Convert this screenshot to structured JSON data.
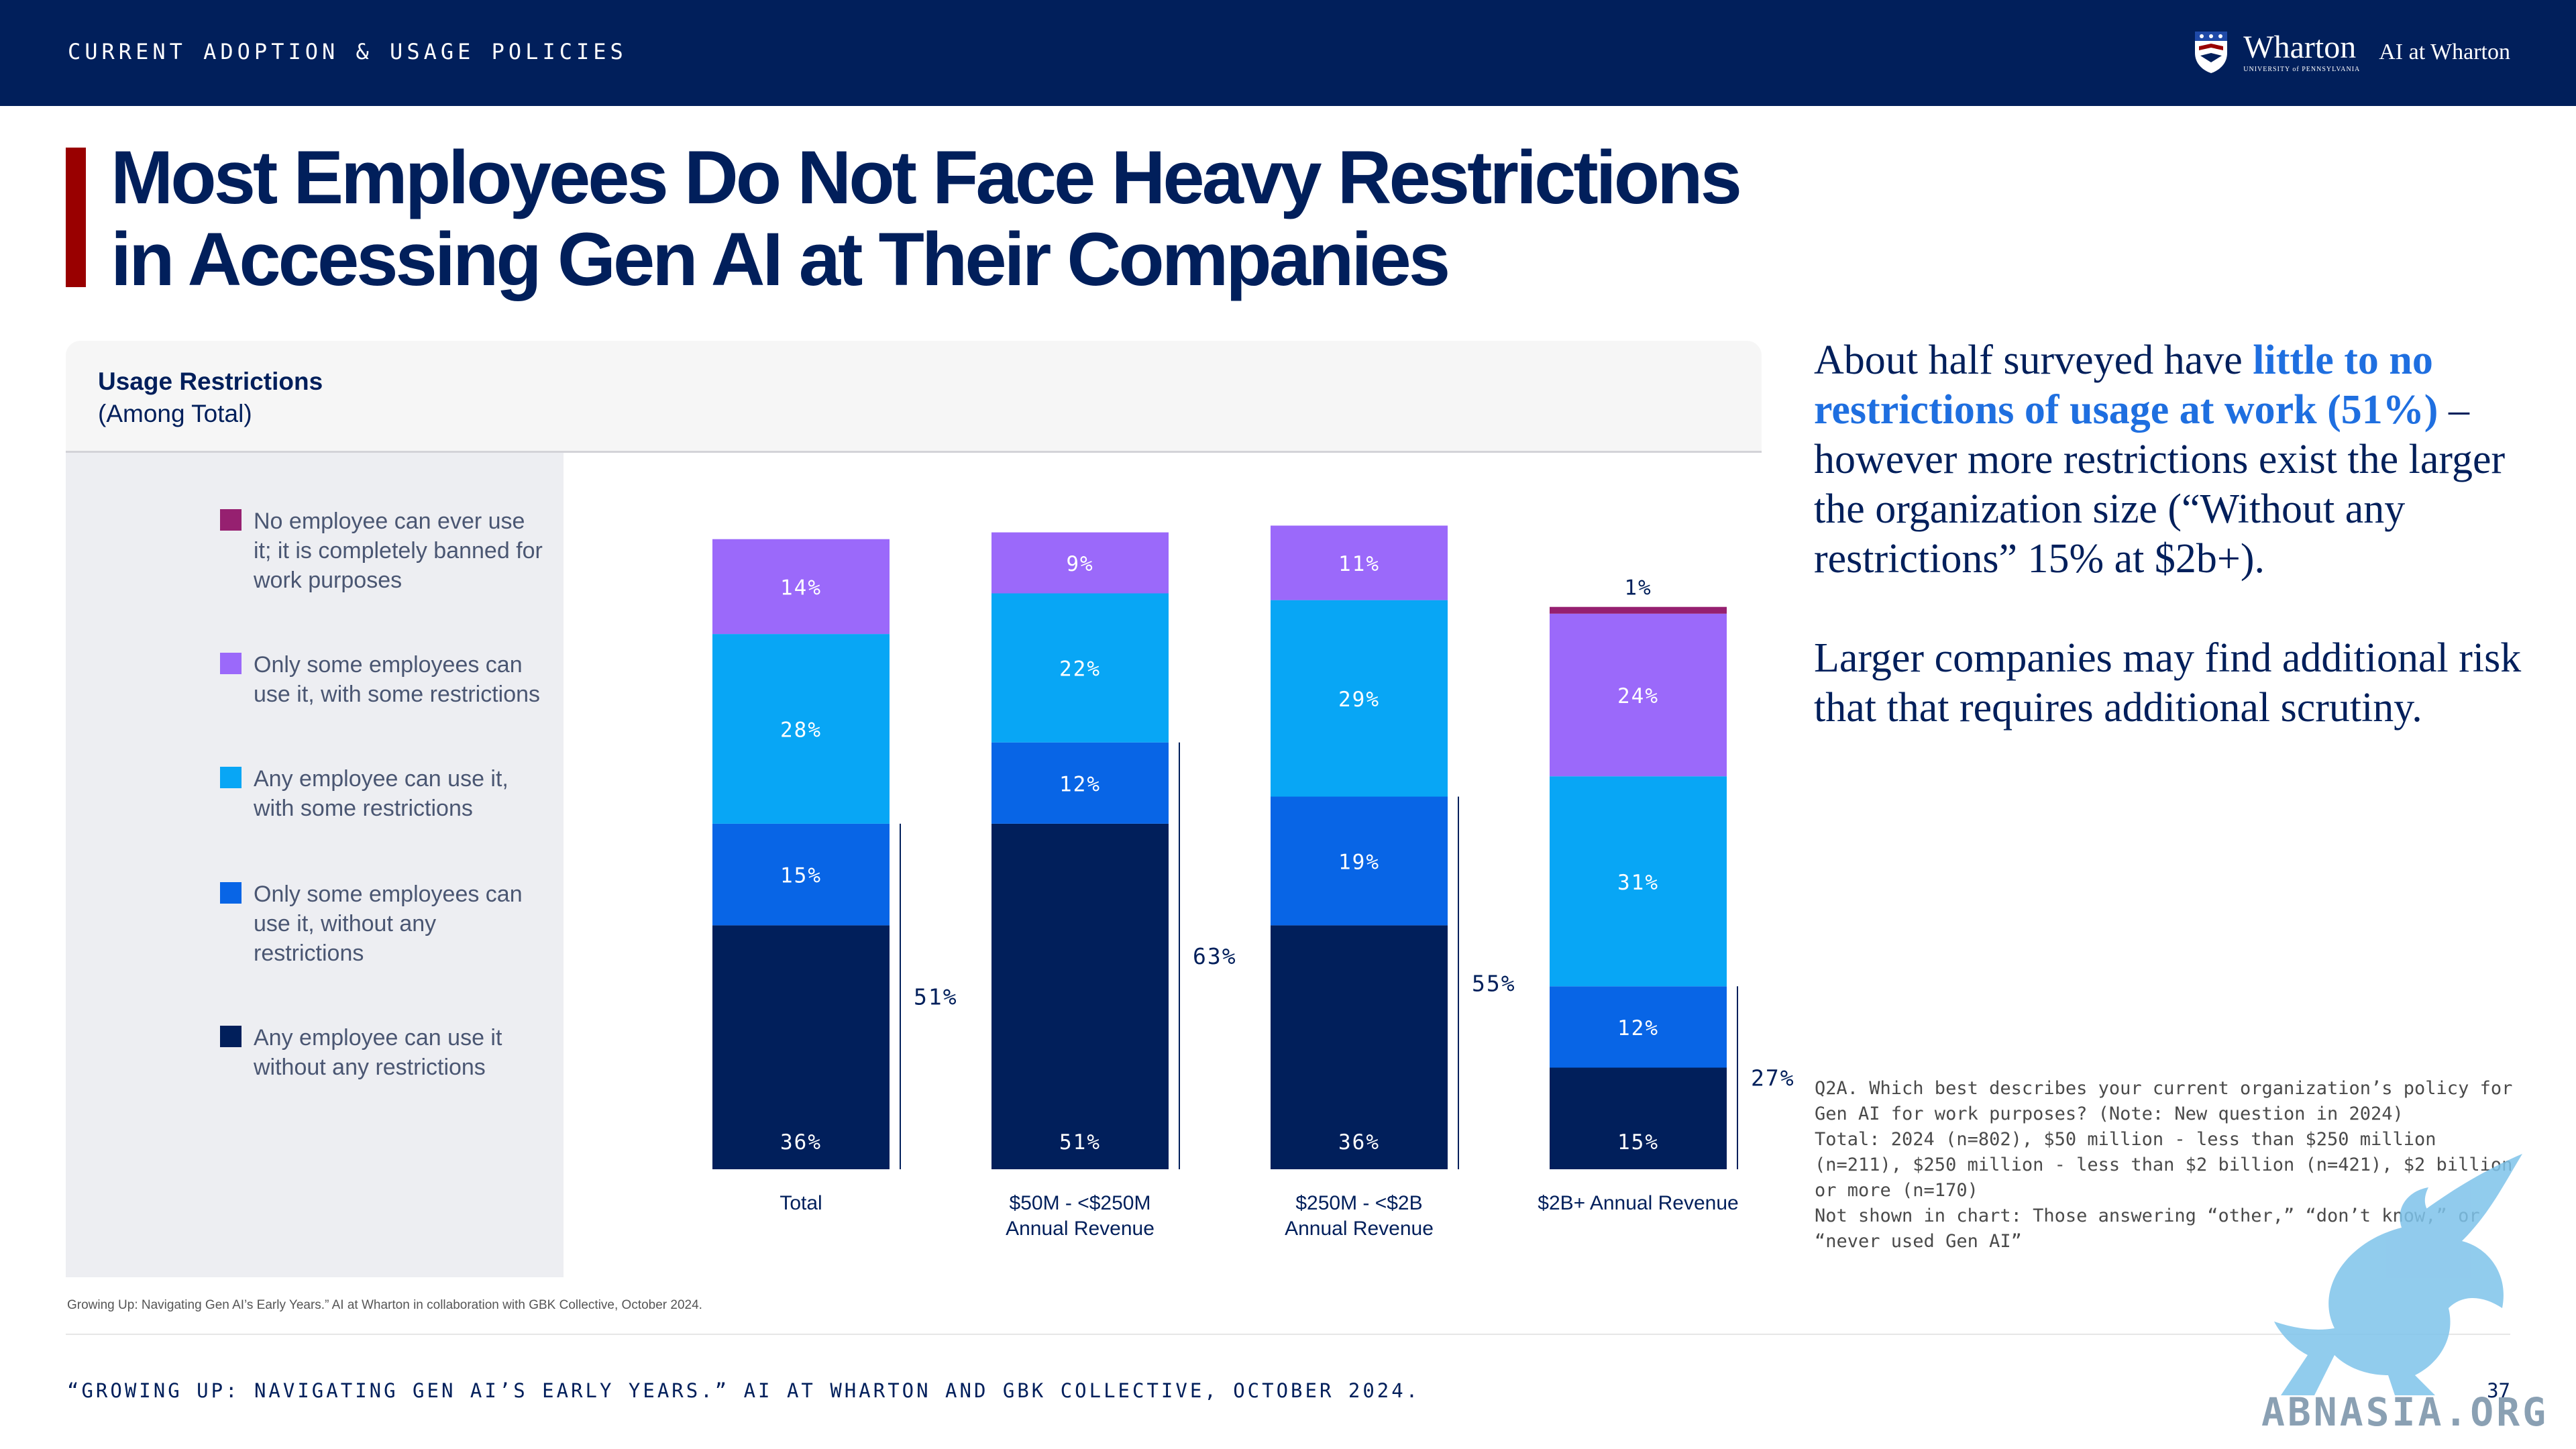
{
  "header": {
    "section_label": "CURRENT ADOPTION & USAGE POLICIES",
    "logo_main": "Wharton",
    "logo_sub": "UNIVERSITY of PENNSYLVANIA",
    "logo_ai": "AI at Wharton"
  },
  "title": "Most Employees Do Not Face Heavy Restrictions in Accessing Gen AI at Their Companies",
  "card": {
    "title": "Usage Restrictions",
    "subtitle": "(Among Total)"
  },
  "colors": {
    "navy": "#011F5B",
    "banned": "#962070",
    "some_employees_some_restrictions": "#9B69FA",
    "any_employee_some_restrictions": "#08A6F5",
    "some_employees_no_restrictions": "#0865E6",
    "any_employee_no_restrictions": "#011F5B",
    "accent_red": "#990000",
    "highlight_blue": "#1F6FE0"
  },
  "chart_data": {
    "type": "bar",
    "stacked": true,
    "categories": [
      "Total",
      "$50M - <$250M\nAnnual Revenue",
      "$250M - <$2B\nAnnual Revenue",
      "$2B+ Annual Revenue"
    ],
    "series": [
      {
        "name": "Any employee can use it without any restrictions",
        "color": "#011F5B",
        "values": [
          36,
          51,
          36,
          15
        ],
        "labels": [
          "36%",
          "51%",
          "36%",
          "15%"
        ]
      },
      {
        "name": "Only some employees can use it, without any restrictions",
        "color": "#0865E6",
        "values": [
          15,
          12,
          19,
          12
        ],
        "labels": [
          "15%",
          "12%",
          "19%",
          "12%"
        ]
      },
      {
        "name": "Any employee can use it, with some restrictions",
        "color": "#08A6F5",
        "values": [
          28,
          22,
          29,
          31
        ],
        "labels": [
          "28%",
          "22%",
          "29%",
          "31%"
        ]
      },
      {
        "name": "Only some employees can use it, with some restrictions",
        "color": "#9B69FA",
        "values": [
          14,
          9,
          11,
          24
        ],
        "labels": [
          "14%",
          "9%",
          "11%",
          "24%"
        ]
      },
      {
        "name": "No employee can ever use it; it is completely banned for work purposes",
        "color": "#962070",
        "values": [
          0,
          0,
          0,
          1
        ],
        "labels": [
          "",
          "",
          "",
          "1%"
        ]
      }
    ],
    "bracket_totals": [
      51,
      63,
      55,
      27
    ],
    "bracket_labels": [
      "51%",
      "63%",
      "55%",
      "27%"
    ],
    "ylim": [
      0,
      100
    ],
    "legend_position": "left"
  },
  "legend": [
    {
      "label": "No employee can ever use it; it is completely banned for work purposes",
      "color": "#962070"
    },
    {
      "label": "Only some employees can use it, with some restrictions",
      "color": "#9B69FA"
    },
    {
      "label": "Any employee can use it, with some restrictions",
      "color": "#08A6F5"
    },
    {
      "label": "Only some employees can use it, without any restrictions",
      "color": "#0865E6"
    },
    {
      "label": "Any employee can use it without any restrictions",
      "color": "#011F5B"
    }
  ],
  "takeaway": {
    "p1_a": "About half surveyed have ",
    "p1_highlight": "little to no restrictions of usage at work (51%)",
    "p1_b": " – however more restrictions exist the larger the organization size (“Without any restrictions” 15% at $2b+).",
    "p2": "Larger companies may find additional risk that that requires additional scrutiny."
  },
  "question_note": "Q2A. Which best describes your current organization’s policy for Gen AI for work purposes? (Note: New question in 2024)\nTotal: 2024 (n=802), $50 million - less than $250 million (n=211), $250 million - less than $2 billion (n=421), $2 billion or more (n=170)\nNot shown in chart: Those answering “other,” “don’t know,” or “never used Gen AI”",
  "source_small": "Growing Up: Navigating Gen AI’s Early Years.” AI at Wharton in collaboration with GBK Collective, October 2024.",
  "footer": {
    "text": "“GROWING UP: NAVIGATING GEN AI’S EARLY YEARS.” AI AT WHARTON AND GBK COLLECTIVE, OCTOBER 2024.",
    "page": "37"
  },
  "watermark": "ABNASIA.ORG"
}
